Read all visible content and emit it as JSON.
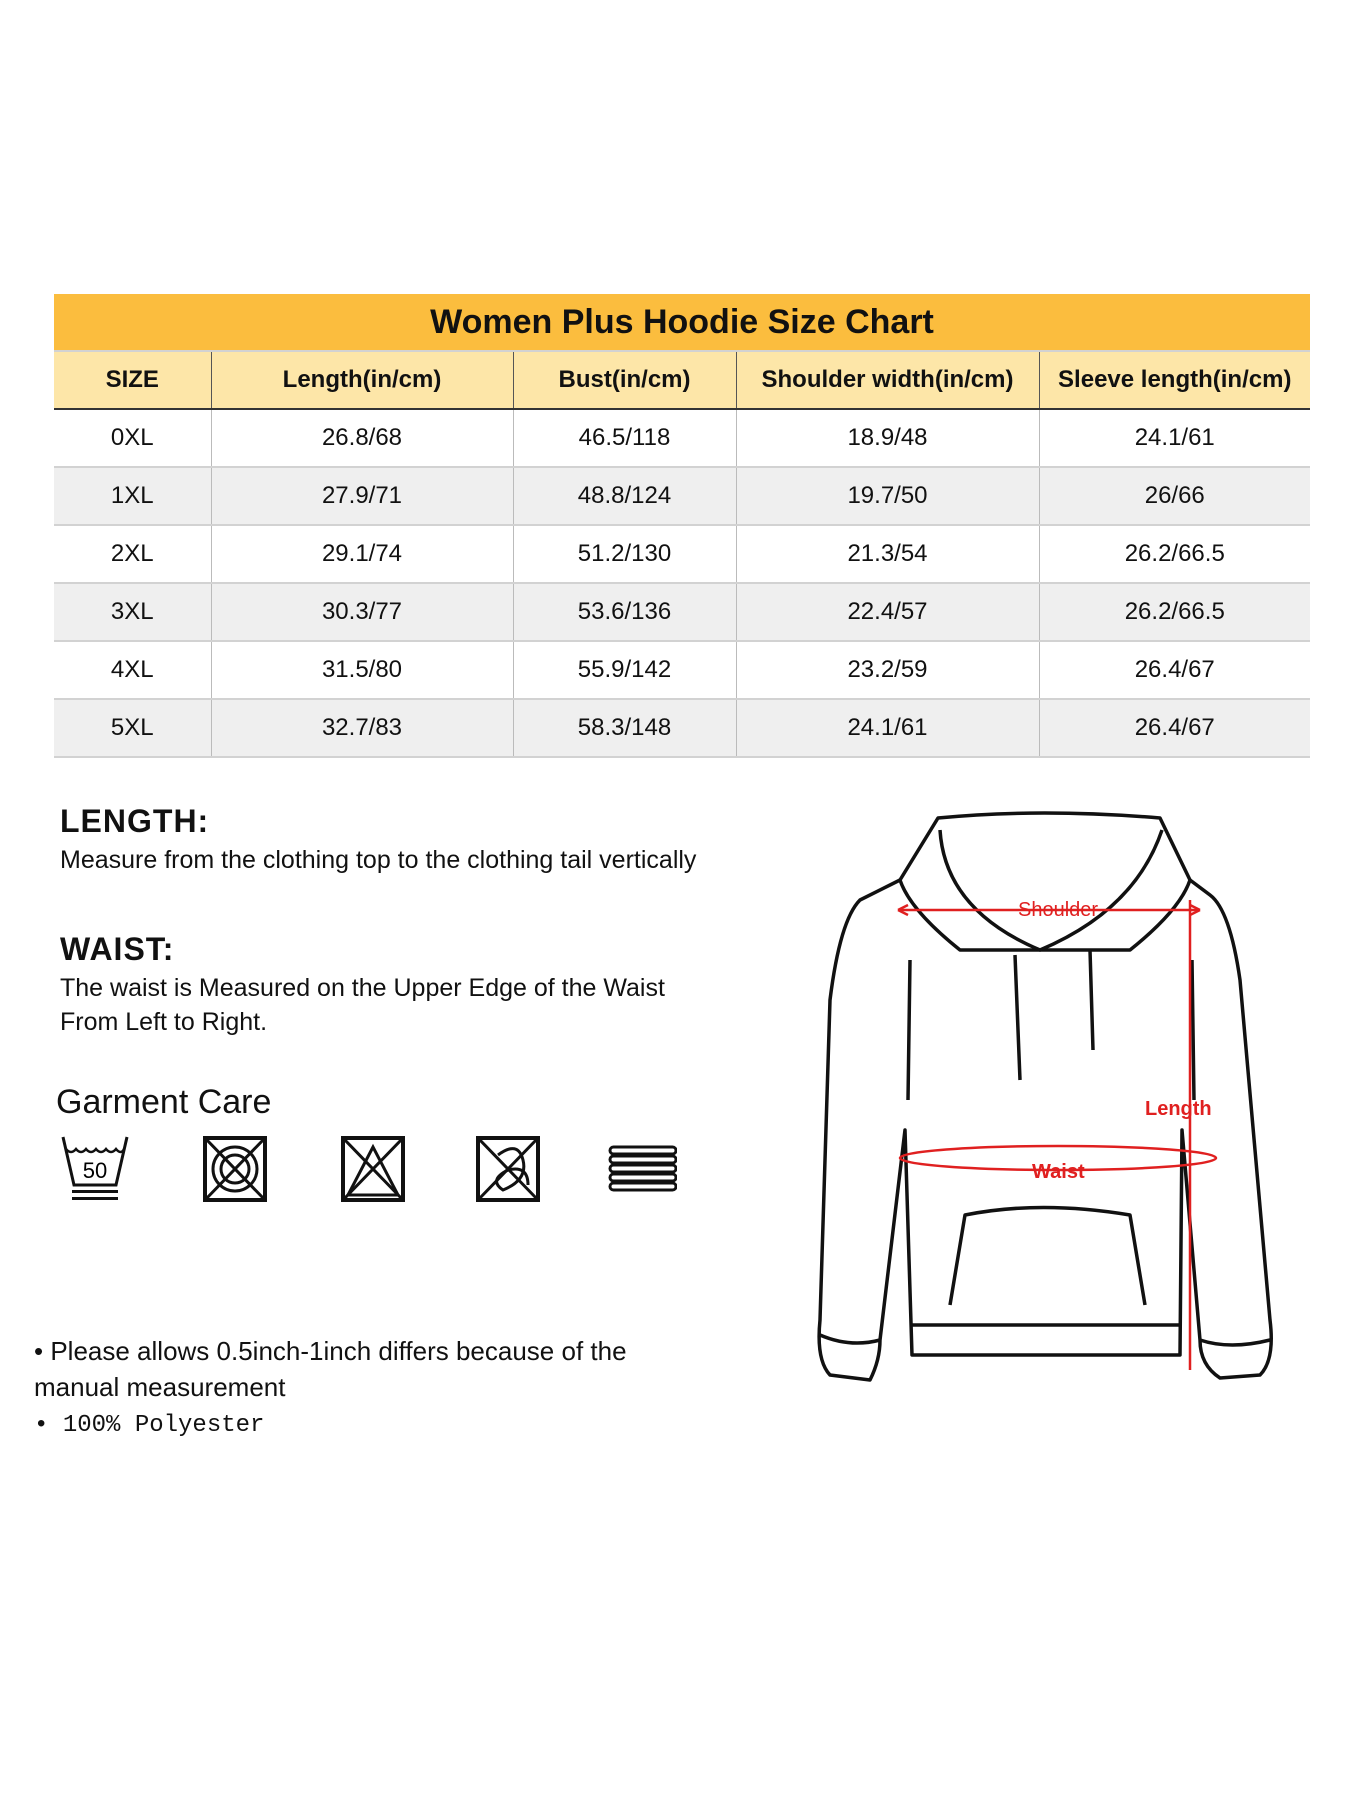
{
  "size_chart": {
    "title": "Women Plus Hoodie Size Chart",
    "header_color": "#fbbd3e",
    "columns": [
      "SIZE",
      "Length(in/cm)",
      "Bust(in/cm)",
      "Shoulder width(in/cm)",
      "Sleeve length(in/cm)"
    ],
    "rows": [
      [
        "0XL",
        "26.8/68",
        "46.5/118",
        "18.9/48",
        "24.1/61"
      ],
      [
        "1XL",
        "27.9/71",
        "48.8/124",
        "19.7/50",
        "26/66"
      ],
      [
        "2XL",
        "29.1/74",
        "51.2/130",
        "21.3/54",
        "26.2/66.5"
      ],
      [
        "3XL",
        "30.3/77",
        "53.6/136",
        "22.4/57",
        "26.2/66.5"
      ],
      [
        "4XL",
        "31.5/80",
        "55.9/142",
        "23.2/59",
        "26.4/67"
      ],
      [
        "5XL",
        "32.7/83",
        "58.3/148",
        "24.1/61",
        "26.4/67"
      ]
    ]
  },
  "length": {
    "heading": "LENGTH:",
    "text": "Measure from the clothing top to the clothing tail vertically"
  },
  "waist": {
    "heading": "WAIST:",
    "text": "The waist is Measured on the Upper Edge of the Waist From Left to Right."
  },
  "care": {
    "heading": "Garment Care",
    "wash_temp": "50",
    "icons": [
      "wash-50-gentle-icon",
      "do-not-tumble-dry-icon",
      "do-not-bleach-icon",
      "do-not-dry-clean-icon",
      "dry-flat-icon"
    ]
  },
  "diagram": {
    "shoulder": "Shoulder",
    "length": "Length",
    "waist": "Waist",
    "measure_color": "#e02020"
  },
  "notes": [
    "Please allows 0.5inch-1inch differs because of the manual measurement",
    "100% Polyester"
  ]
}
